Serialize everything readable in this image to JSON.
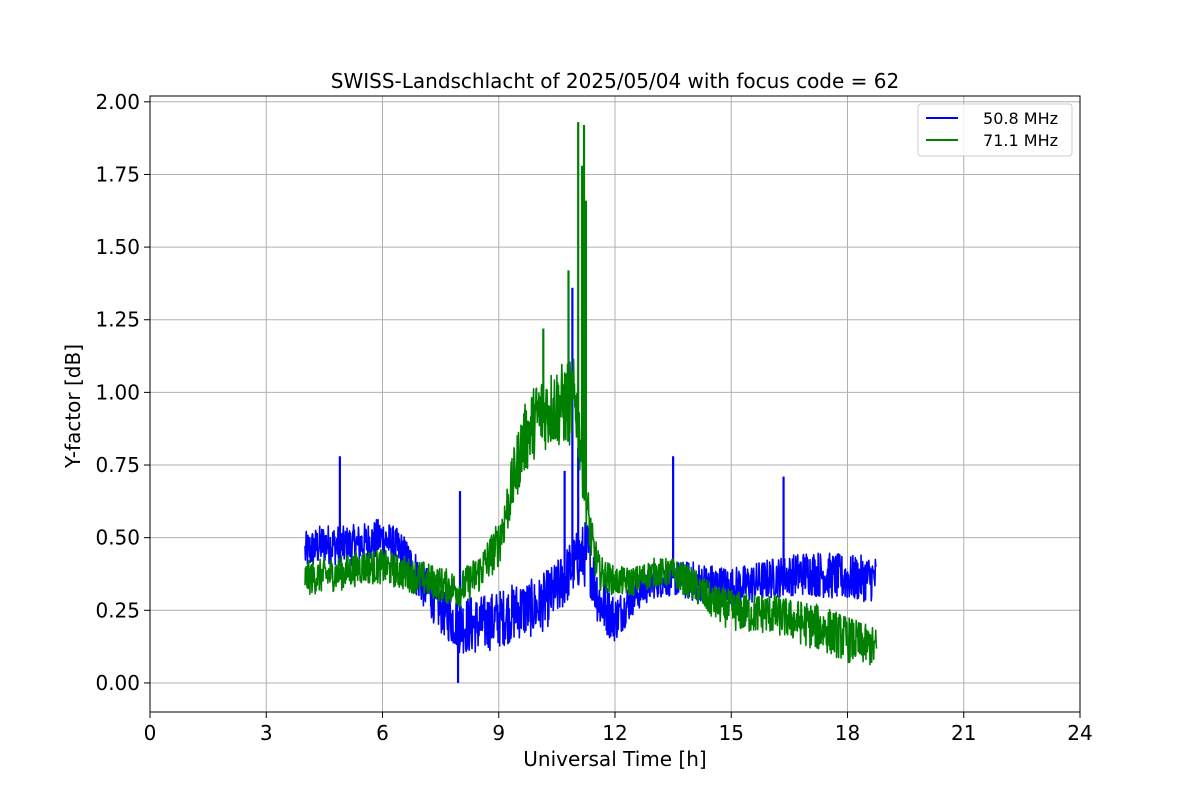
{
  "chart_data": {
    "type": "line",
    "title": "SWISS-Landschlacht of 2025/05/04 with focus code = 62",
    "xlabel": "Universal Time [h]",
    "ylabel": "Y-factor [dB]",
    "xlim": [
      0,
      24
    ],
    "ylim": [
      -0.1,
      2.02
    ],
    "xticks": [
      0,
      3,
      6,
      9,
      12,
      15,
      18,
      21,
      24
    ],
    "xtick_labels": [
      "0",
      "3",
      "6",
      "9",
      "12",
      "15",
      "18",
      "21",
      "24"
    ],
    "yticks": [
      0.0,
      0.25,
      0.5,
      0.75,
      1.0,
      1.25,
      1.5,
      1.75,
      2.0
    ],
    "ytick_labels": [
      "0.00",
      "0.25",
      "0.50",
      "0.75",
      "1.00",
      "1.25",
      "1.50",
      "1.75",
      "2.00"
    ],
    "grid": true,
    "legend_position": "top-right",
    "series": [
      {
        "name": "50.8 MHz",
        "color": "#0000ff",
        "x": [
          4.0,
          4.5,
          5.0,
          5.5,
          6.0,
          6.5,
          7.0,
          7.5,
          8.0,
          8.5,
          9.0,
          9.5,
          10.0,
          10.5,
          11.0,
          11.3,
          11.6,
          12.0,
          12.5,
          13.0,
          13.5,
          14.0,
          14.5,
          15.0,
          15.5,
          16.0,
          16.5,
          17.0,
          17.5,
          18.0,
          18.5,
          18.75
        ],
        "y": [
          0.45,
          0.48,
          0.47,
          0.48,
          0.5,
          0.45,
          0.35,
          0.25,
          0.2,
          0.2,
          0.22,
          0.25,
          0.26,
          0.32,
          0.42,
          0.45,
          0.28,
          0.22,
          0.3,
          0.35,
          0.36,
          0.35,
          0.34,
          0.33,
          0.34,
          0.36,
          0.37,
          0.38,
          0.37,
          0.36,
          0.36,
          0.36
        ],
        "spread": [
          0.07,
          0.07,
          0.07,
          0.07,
          0.07,
          0.07,
          0.08,
          0.08,
          0.1,
          0.1,
          0.1,
          0.1,
          0.1,
          0.1,
          0.1,
          0.12,
          0.1,
          0.08,
          0.06,
          0.06,
          0.06,
          0.07,
          0.07,
          0.07,
          0.07,
          0.07,
          0.07,
          0.08,
          0.08,
          0.08,
          0.08,
          0.08
        ],
        "spikes": [
          [
            4.9,
            0.78
          ],
          [
            8.0,
            0.66
          ],
          [
            10.7,
            0.73
          ],
          [
            10.9,
            1.36
          ],
          [
            11.05,
            0.81
          ],
          [
            13.5,
            0.78
          ],
          [
            16.35,
            0.71
          ],
          [
            7.95,
            0.0
          ]
        ]
      },
      {
        "name": "71.1 MHz",
        "color": "#008000",
        "x": [
          4.0,
          4.5,
          5.0,
          5.5,
          6.0,
          6.5,
          7.0,
          7.5,
          8.0,
          8.5,
          9.0,
          9.3,
          9.6,
          10.0,
          10.4,
          10.8,
          11.0,
          11.2,
          11.4,
          11.6,
          12.0,
          12.5,
          13.0,
          13.5,
          14.0,
          14.5,
          15.0,
          15.5,
          16.0,
          16.5,
          17.0,
          17.5,
          18.0,
          18.5,
          18.75
        ],
        "y": [
          0.36,
          0.37,
          0.38,
          0.4,
          0.4,
          0.38,
          0.36,
          0.34,
          0.32,
          0.38,
          0.48,
          0.65,
          0.82,
          0.92,
          0.95,
          0.96,
          0.97,
          0.7,
          0.48,
          0.38,
          0.35,
          0.35,
          0.38,
          0.38,
          0.34,
          0.28,
          0.25,
          0.24,
          0.24,
          0.22,
          0.2,
          0.18,
          0.15,
          0.13,
          0.12
        ],
        "spread": [
          0.06,
          0.06,
          0.06,
          0.06,
          0.06,
          0.06,
          0.06,
          0.06,
          0.06,
          0.07,
          0.08,
          0.1,
          0.12,
          0.13,
          0.14,
          0.15,
          0.15,
          0.1,
          0.08,
          0.06,
          0.05,
          0.05,
          0.05,
          0.05,
          0.06,
          0.06,
          0.07,
          0.07,
          0.07,
          0.07,
          0.08,
          0.08,
          0.08,
          0.07,
          0.07
        ],
        "spikes": [
          [
            10.15,
            1.22
          ],
          [
            10.8,
            1.42
          ],
          [
            11.05,
            1.93
          ],
          [
            11.15,
            1.78
          ],
          [
            11.25,
            1.66
          ],
          [
            11.2,
            1.92
          ]
        ]
      }
    ]
  }
}
